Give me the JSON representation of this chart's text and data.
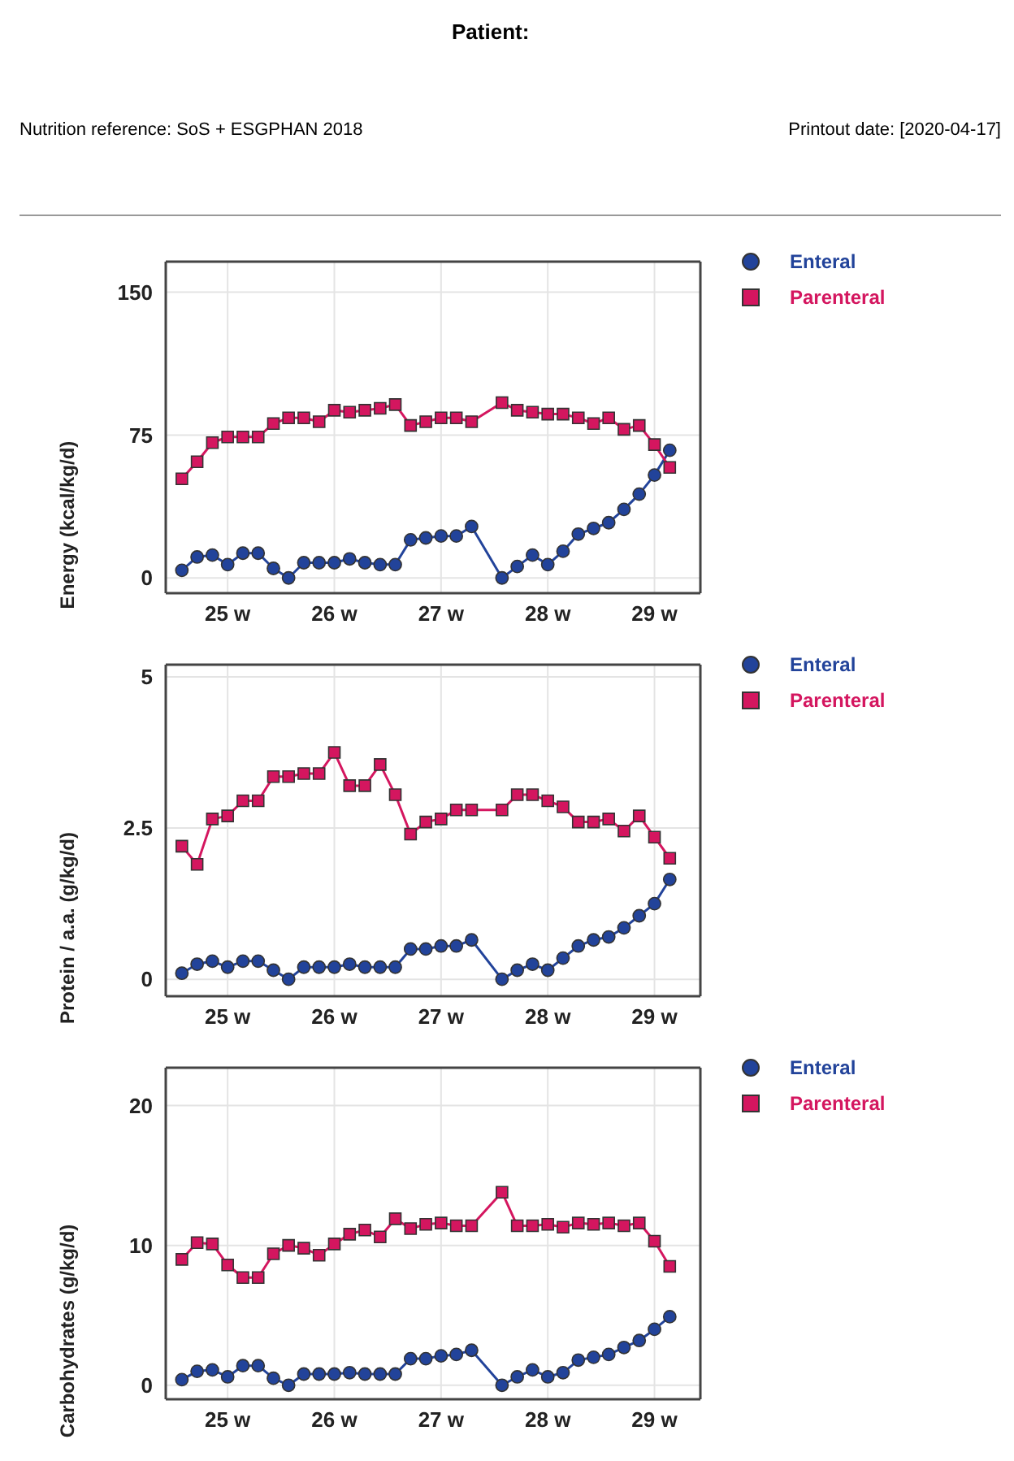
{
  "chart_data": [
    {
      "type": "line",
      "title": "Patient:",
      "annotations": [
        "Nutrition reference: SoS + ESGPHAN 2018",
        "Printout date: [2020-04-17]"
      ],
      "ylabel": "Energy (kcal/kg/d)",
      "x": [
        24.571,
        24.714,
        24.857,
        25.0,
        25.143,
        25.286,
        25.429,
        25.571,
        25.714,
        25.857,
        26.0,
        26.143,
        26.286,
        26.429,
        26.571,
        26.714,
        26.857,
        27.0,
        27.143,
        27.286,
        27.571,
        27.714,
        27.857,
        28.0,
        28.143,
        28.286,
        28.429,
        28.571,
        28.714,
        28.857,
        29.0,
        29.143
      ],
      "xlim": [
        24.42,
        29.43
      ],
      "xticks": [
        {
          "value": 25,
          "label": "25 w"
        },
        {
          "value": 26,
          "label": "26 w"
        },
        {
          "value": 27,
          "label": "27 w"
        },
        {
          "value": 28,
          "label": "28 w"
        },
        {
          "value": 29,
          "label": "29 w"
        }
      ],
      "ylim": [
        -8,
        166
      ],
      "yticks": [
        0,
        75,
        150
      ],
      "grid": true,
      "legend": "right",
      "series": [
        {
          "name": "Enteral",
          "color": "#22439a",
          "marker": "circle",
          "values": [
            4,
            11,
            12,
            7,
            13,
            13,
            5,
            0,
            8,
            8,
            8,
            10,
            8,
            7,
            7,
            20,
            21,
            22,
            22,
            27,
            0,
            6,
            12,
            7,
            14,
            23,
            26,
            29,
            36,
            44,
            54,
            67
          ]
        },
        {
          "name": "Parenteral",
          "color": "#d4165f",
          "marker": "square",
          "values": [
            52,
            61,
            71,
            74,
            74,
            74,
            81,
            84,
            84,
            82,
            88,
            87,
            88,
            89,
            91,
            80,
            82,
            84,
            84,
            82,
            92,
            88,
            87,
            86,
            86,
            84,
            81,
            84,
            78,
            80,
            70,
            58
          ]
        }
      ]
    },
    {
      "type": "line",
      "ylabel": "Protein / a.a. (g/kg/d)",
      "x": [
        24.571,
        24.714,
        24.857,
        25.0,
        25.143,
        25.286,
        25.429,
        25.571,
        25.714,
        25.857,
        26.0,
        26.143,
        26.286,
        26.429,
        26.571,
        26.714,
        26.857,
        27.0,
        27.143,
        27.286,
        27.571,
        27.714,
        27.857,
        28.0,
        28.143,
        28.286,
        28.429,
        28.571,
        28.714,
        28.857,
        29.0,
        29.143
      ],
      "xlim": [
        24.42,
        29.43
      ],
      "xticks": [
        {
          "value": 25,
          "label": "25 w"
        },
        {
          "value": 26,
          "label": "26 w"
        },
        {
          "value": 27,
          "label": "27 w"
        },
        {
          "value": 28,
          "label": "28 w"
        },
        {
          "value": 29,
          "label": "29 w"
        }
      ],
      "ylim": [
        -0.28,
        5.2
      ],
      "yticks": [
        0,
        2.5,
        5
      ],
      "grid": true,
      "legend": "right",
      "series": [
        {
          "name": "Enteral",
          "color": "#22439a",
          "marker": "circle",
          "values": [
            0.1,
            0.25,
            0.3,
            0.2,
            0.3,
            0.3,
            0.15,
            0,
            0.2,
            0.2,
            0.2,
            0.25,
            0.2,
            0.2,
            0.2,
            0.5,
            0.5,
            0.55,
            0.55,
            0.65,
            0,
            0.15,
            0.25,
            0.15,
            0.35,
            0.55,
            0.65,
            0.7,
            0.85,
            1.05,
            1.25,
            1.65
          ]
        },
        {
          "name": "Parenteral",
          "color": "#d4165f",
          "marker": "square",
          "values": [
            2.2,
            1.9,
            2.65,
            2.7,
            2.95,
            2.95,
            3.35,
            3.35,
            3.4,
            3.4,
            3.75,
            3.2,
            3.2,
            3.55,
            3.05,
            2.4,
            2.6,
            2.65,
            2.8,
            2.8,
            2.8,
            3.05,
            3.05,
            2.95,
            2.85,
            2.6,
            2.6,
            2.65,
            2.45,
            2.7,
            2.35,
            2.0
          ]
        }
      ]
    },
    {
      "type": "line",
      "ylabel": "Carbohydrates (g/kg/d)",
      "x": [
        24.571,
        24.714,
        24.857,
        25.0,
        25.143,
        25.286,
        25.429,
        25.571,
        25.714,
        25.857,
        26.0,
        26.143,
        26.286,
        26.429,
        26.571,
        26.714,
        26.857,
        27.0,
        27.143,
        27.286,
        27.571,
        27.714,
        27.857,
        28.0,
        28.143,
        28.286,
        28.429,
        28.571,
        28.714,
        28.857,
        29.0,
        29.143
      ],
      "xlim": [
        24.42,
        29.43
      ],
      "xticks": [
        {
          "value": 25,
          "label": "25 w"
        },
        {
          "value": 26,
          "label": "26 w"
        },
        {
          "value": 27,
          "label": "27 w"
        },
        {
          "value": 28,
          "label": "28 w"
        },
        {
          "value": 29,
          "label": "29 w"
        }
      ],
      "ylim": [
        -1,
        22.7
      ],
      "yticks": [
        0,
        10,
        20
      ],
      "grid": true,
      "legend": "right",
      "series": [
        {
          "name": "Enteral",
          "color": "#22439a",
          "marker": "circle",
          "values": [
            0.4,
            1.0,
            1.1,
            0.6,
            1.4,
            1.4,
            0.5,
            0,
            0.8,
            0.8,
            0.8,
            0.9,
            0.8,
            0.8,
            0.8,
            1.9,
            1.9,
            2.1,
            2.2,
            2.5,
            0,
            0.6,
            1.1,
            0.6,
            0.9,
            1.8,
            2.0,
            2.2,
            2.7,
            3.2,
            4.0,
            4.9
          ]
        },
        {
          "name": "Parenteral",
          "color": "#d4165f",
          "marker": "square",
          "values": [
            9.0,
            10.2,
            10.1,
            8.6,
            7.7,
            7.7,
            9.4,
            10.0,
            9.8,
            9.3,
            10.1,
            10.8,
            11.1,
            10.6,
            11.9,
            11.2,
            11.5,
            11.6,
            11.4,
            11.4,
            13.8,
            11.4,
            11.4,
            11.5,
            11.3,
            11.6,
            11.5,
            11.6,
            11.4,
            11.6,
            10.3,
            8.5
          ]
        }
      ]
    }
  ]
}
